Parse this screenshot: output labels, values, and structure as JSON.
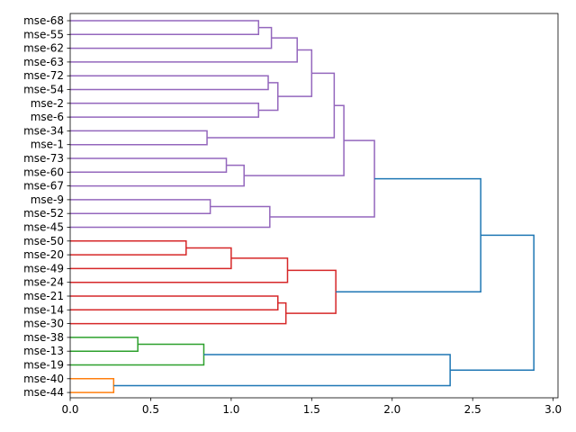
{
  "chart_data": {
    "type": "dendrogram",
    "orientation": "horizontal",
    "title": "",
    "xlabel": "",
    "ylabel": "",
    "xlim": [
      0,
      3.03
    ],
    "x_ticks": [
      0.0,
      0.5,
      1.0,
      1.5,
      2.0,
      2.5,
      3.0
    ],
    "x_tick_labels": [
      "0.0",
      "0.5",
      "1.0",
      "1.5",
      "2.0",
      "2.5",
      "3.0"
    ],
    "leaves_top_to_bottom": [
      "mse-68",
      "mse-55",
      "mse-62",
      "mse-63",
      "mse-72",
      "mse-54",
      "mse-2",
      "mse-6",
      "mse-34",
      "mse-1",
      "mse-73",
      "mse-60",
      "mse-67",
      "mse-9",
      "mse-52",
      "mse-45",
      "mse-50",
      "mse-20",
      "mse-49",
      "mse-24",
      "mse-21",
      "mse-14",
      "mse-30",
      "mse-38",
      "mse-13",
      "mse-19",
      "mse-40",
      "mse-44"
    ],
    "colors": {
      "purple": "#9467bd",
      "red": "#d62728",
      "green": "#2ca02c",
      "orange": "#ff7f0e",
      "blue": "#1f77b4"
    },
    "merges": [
      {
        "a": "mse-68",
        "b": "mse-55",
        "height": 1.17,
        "color": "purple",
        "id": "p1"
      },
      {
        "a": "p1",
        "b": "mse-62",
        "height": 1.25,
        "color": "purple",
        "id": "p2"
      },
      {
        "a": "p2",
        "b": "mse-63",
        "height": 1.41,
        "color": "purple",
        "id": "p3"
      },
      {
        "a": "mse-72",
        "b": "mse-54",
        "height": 1.23,
        "color": "purple",
        "id": "p4"
      },
      {
        "a": "mse-2",
        "b": "mse-6",
        "height": 1.17,
        "color": "purple",
        "id": "p5"
      },
      {
        "a": "p4",
        "b": "p5",
        "height": 1.29,
        "color": "purple",
        "id": "p6"
      },
      {
        "a": "p3",
        "b": "p6",
        "height": 1.5,
        "color": "purple",
        "id": "p7"
      },
      {
        "a": "mse-34",
        "b": "mse-1",
        "height": 0.85,
        "color": "purple",
        "id": "p8"
      },
      {
        "a": "p7",
        "b": "p8",
        "height": 1.64,
        "color": "purple",
        "id": "p9"
      },
      {
        "a": "mse-73",
        "b": "mse-60",
        "height": 0.97,
        "color": "purple",
        "id": "p10"
      },
      {
        "a": "p10",
        "b": "mse-67",
        "height": 1.08,
        "color": "purple",
        "id": "p11"
      },
      {
        "a": "p9",
        "b": "p11",
        "height": 1.7,
        "color": "purple",
        "id": "p12"
      },
      {
        "a": "mse-9",
        "b": "mse-52",
        "height": 0.87,
        "color": "purple",
        "id": "p13"
      },
      {
        "a": "p13",
        "b": "mse-45",
        "height": 1.24,
        "color": "purple",
        "id": "p14"
      },
      {
        "a": "p12",
        "b": "p14",
        "height": 1.89,
        "color": "purple",
        "id": "p15"
      },
      {
        "a": "mse-50",
        "b": "mse-20",
        "height": 0.72,
        "color": "red",
        "id": "r1"
      },
      {
        "a": "r1",
        "b": "mse-49",
        "height": 1.0,
        "color": "red",
        "id": "r2"
      },
      {
        "a": "r2",
        "b": "mse-24",
        "height": 1.35,
        "color": "red",
        "id": "r3"
      },
      {
        "a": "mse-21",
        "b": "mse-14",
        "height": 1.29,
        "color": "red",
        "id": "r4"
      },
      {
        "a": "r4",
        "b": "mse-30",
        "height": 1.34,
        "color": "red",
        "id": "r5"
      },
      {
        "a": "r3",
        "b": "r5",
        "height": 1.65,
        "color": "red",
        "id": "r6"
      },
      {
        "a": "p15",
        "b": "r6",
        "height": 2.55,
        "color": "blue",
        "id": "b1"
      },
      {
        "a": "mse-38",
        "b": "mse-13",
        "height": 0.42,
        "color": "green",
        "id": "g1"
      },
      {
        "a": "g1",
        "b": "mse-19",
        "height": 0.83,
        "color": "green",
        "id": "g2"
      },
      {
        "a": "mse-40",
        "b": "mse-44",
        "height": 0.27,
        "color": "orange",
        "id": "o1"
      },
      {
        "a": "g2",
        "b": "o1",
        "height": 2.36,
        "color": "blue",
        "id": "b2"
      },
      {
        "a": "b1",
        "b": "b2",
        "height": 2.88,
        "color": "blue",
        "id": "root"
      }
    ]
  }
}
